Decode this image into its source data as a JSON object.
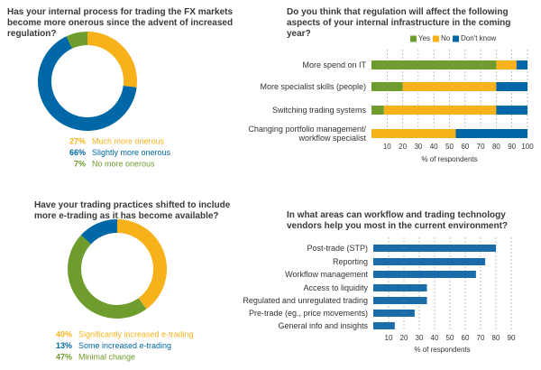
{
  "chart_data": [
    {
      "type": "donut",
      "title": "Has your internal process for trading the FX markets become more onerous since the advent of increased regulation?",
      "categories": [
        "Much more onerous",
        "Slightly more onerous",
        "No more onerous"
      ],
      "values": [
        27,
        66,
        7
      ],
      "value_labels": [
        "27%",
        "66%",
        "7%"
      ],
      "colors": [
        "#f7b21b",
        "#0068a6",
        "#6e9c2d"
      ]
    },
    {
      "type": "stacked_bar",
      "title": "Do you think that regulation will affect the following aspects of your internal infrastructure in the coming year?",
      "categories": [
        "More spend on IT",
        "More specialist skills (people)",
        "Switching trading systems",
        "Changing portfolio management/ workflow specialist"
      ],
      "series": [
        {
          "name": "Yes",
          "color": "#6e9c2d",
          "values": [
            80,
            20,
            8,
            0
          ]
        },
        {
          "name": "No",
          "color": "#f7b21b",
          "values": [
            13,
            60,
            72,
            54
          ]
        },
        {
          "name": "Don't know",
          "color": "#0068a6",
          "values": [
            7,
            20,
            20,
            46
          ]
        }
      ],
      "xlim": [
        0,
        100
      ],
      "xticks": [
        10,
        20,
        30,
        40,
        50,
        60,
        70,
        80,
        90,
        100
      ],
      "xlabel": "% of respondents",
      "grid": true,
      "legend": "top"
    },
    {
      "type": "donut",
      "title": "Have your trading practices shifted to include more e-trading as it has become available?",
      "categories": [
        "Significantly increased e-trading",
        "Some increased e-trading",
        "Minimal change"
      ],
      "values": [
        40,
        13,
        47
      ],
      "value_labels": [
        "40%",
        "13%",
        "47%"
      ],
      "colors": [
        "#f7b21b",
        "#0068a6",
        "#6e9c2d"
      ]
    },
    {
      "type": "bar",
      "title": "In what areas can workflow and trading technology vendors help you most in the current environment?",
      "categories": [
        "Post-trade (STP)",
        "Reporting",
        "Workflow management",
        "Access to liquidity",
        "Regulated and unregulated trading",
        "Pre-trade (eg., price movements)",
        "General info and insights"
      ],
      "values": [
        80,
        73,
        67,
        35,
        35,
        27,
        14
      ],
      "color": "#1b6ca8",
      "xlim": [
        0,
        90
      ],
      "xticks": [
        10,
        20,
        30,
        40,
        50,
        60,
        70,
        80,
        90
      ],
      "xlabel": "% of respondents",
      "grid": true
    }
  ]
}
